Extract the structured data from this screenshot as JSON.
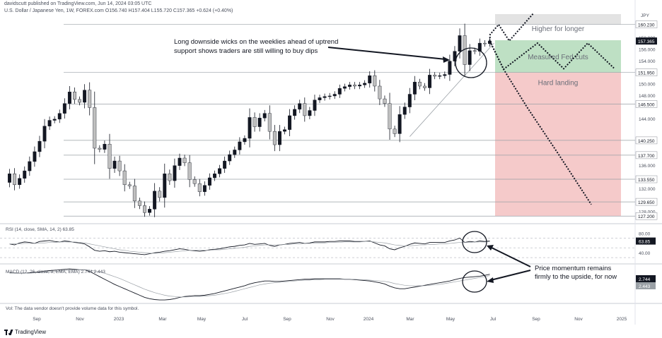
{
  "header": {
    "publisher_line": "davidscutt published on TradingView.com, Jun 14, 2024 03:05 UTC",
    "symbol_line": "U.S. Dollar / Japanese Yen, 1W, FOREX.com  O156.740  H157.404  L155.720  C157.365  +0.624 (+0.40%)",
    "currency": "JPY"
  },
  "footer": {
    "volume_note": "Vol: The data vendor doesn't provide volume data for this symbol.",
    "brand": "TradingView"
  },
  "colors": {
    "up_candle": "#131722",
    "down_candle": "#bfbfbf",
    "zone_higher": "#d9d9d9",
    "zone_measured": "#a8d5b0",
    "zone_hard": "#f2b8b8",
    "level_line": "#9aa0a6"
  },
  "chart_data": [
    {
      "type": "candlestick",
      "title": "U.S. Dollar / Japanese Yen, 1W",
      "x_tick_labels": [
        "Sep",
        "Nov",
        "2023",
        "Mar",
        "May",
        "Jul",
        "Sep",
        "Nov",
        "2024",
        "Mar",
        "May",
        "Jul",
        "Sep",
        "Nov",
        "2025"
      ],
      "y_tick_labels": [
        128,
        132,
        136,
        140,
        144,
        148,
        150,
        152,
        154,
        156,
        158
      ],
      "ylim": [
        126.5,
        162.0
      ],
      "close_path": [
        134.5,
        132.6,
        133.7,
        135.0,
        136.6,
        138.3,
        140.1,
        142.7,
        143.7,
        143.9,
        144.9,
        146.6,
        148.6,
        147.3,
        146.8,
        148.9,
        145.9,
        138.9,
        138.7,
        139.6,
        135.4,
        136.7,
        135.0,
        132.6,
        132.4,
        129.8,
        129.0,
        127.8,
        128.4,
        131.5,
        130.4,
        134.5,
        133.3,
        135.9,
        137.2,
        136.4,
        133.5,
        132.8,
        131.4,
        132.5,
        133.8,
        134.5,
        135.4,
        136.7,
        137.8,
        138.6,
        140.0,
        140.6,
        144.2,
        142.6,
        144.1,
        144.9,
        141.8,
        139.5,
        141.8,
        142.1,
        144.5,
        145.6,
        146.6,
        144.5,
        145.4,
        147.2,
        147.6,
        147.8,
        147.9,
        148.2,
        149.2,
        149.5,
        149.8,
        149.6,
        149.8,
        150.1,
        151.4,
        149.6,
        147.4,
        146.6,
        142.2,
        141.4,
        144.7,
        146.0,
        148.2,
        150.3,
        149.6,
        149.3,
        151.5,
        151.3,
        151.4,
        151.6,
        153.9,
        155.6,
        158.3,
        153.3,
        155.7,
        155.6,
        157.0,
        156.9,
        157.37
      ],
      "annotations": [
        "Long downside wicks on the weeklies ahead of uptrend support shows traders are still willing to buy dips",
        "Price momentum remains firmly to the upside, for now"
      ],
      "zones": [
        {
          "label": "Higher for longer",
          "from": 160.23,
          "to": 162.0
        },
        {
          "label": "Measured Fed cuts",
          "from": 151.95,
          "to": 157.5
        },
        {
          "label": "Hard landing",
          "from": 127.2,
          "to": 151.95
        }
      ],
      "price_levels": [
        {
          "label": "160.230",
          "value": 160.23
        },
        {
          "label": "157.365",
          "value": 157.365,
          "current": true
        },
        {
          "label": "151.950",
          "value": 151.95
        },
        {
          "label": "146.500",
          "value": 146.5
        },
        {
          "label": "140.250",
          "value": 140.25
        },
        {
          "label": "137.700",
          "value": 137.7
        },
        {
          "label": "133.550",
          "value": 133.55
        },
        {
          "label": "129.650",
          "value": 129.65
        },
        {
          "label": "127.200",
          "value": 127.2
        }
      ]
    },
    {
      "type": "line",
      "title": "RSI (14, close, SMA, 14, 2)",
      "value_label": "63.85",
      "y_tick_labels": [
        80.0,
        40.0
      ],
      "ylim": [
        20,
        95
      ],
      "series": [
        {
          "values": [
            58,
            56,
            60,
            62,
            61,
            59,
            63,
            64,
            65,
            63,
            62,
            64,
            63,
            61,
            60,
            58,
            52,
            45,
            43,
            44,
            42,
            43,
            41,
            40,
            39,
            38,
            37,
            36,
            38,
            40,
            41,
            43,
            44,
            46,
            48,
            47,
            45,
            44,
            43,
            44,
            46,
            47,
            48,
            50,
            52,
            53,
            55,
            56,
            59,
            57,
            58,
            59,
            55,
            53,
            56,
            57,
            59,
            60,
            61,
            59,
            60,
            62,
            62,
            62,
            63,
            63,
            64,
            64,
            64,
            63,
            63,
            63,
            64,
            60,
            56,
            54,
            48,
            46,
            50,
            53,
            57,
            60,
            59,
            58,
            61,
            61,
            61,
            61,
            64,
            66,
            70,
            61,
            63,
            62,
            64,
            63,
            63.85
          ]
        },
        {
          "values": [
            58,
            58,
            58,
            59,
            59,
            59,
            60,
            60,
            61,
            61,
            62,
            62,
            62,
            62,
            61,
            60,
            58,
            56,
            54,
            52,
            50,
            48,
            46,
            45,
            43,
            42,
            41,
            40,
            39,
            39,
            39,
            40,
            41,
            42,
            43,
            44,
            45,
            45,
            45,
            45,
            45,
            46,
            46,
            47,
            48,
            49,
            50,
            51,
            53,
            54,
            55,
            56,
            56,
            56,
            56,
            57,
            57,
            58,
            58,
            59,
            59,
            60,
            60,
            60,
            61,
            61,
            61,
            62,
            62,
            62,
            62,
            63,
            63,
            62,
            61,
            60,
            58,
            56,
            55,
            54,
            54,
            55,
            56,
            56,
            57,
            57,
            58,
            58,
            59,
            60,
            61,
            61,
            61,
            62,
            62,
            62,
            62.5
          ]
        }
      ]
    },
    {
      "type": "line",
      "title": "MACD (12, 26, close, 9, EMA, EMA)",
      "value_labels": [
        "2.744",
        "2.443"
      ],
      "ylim": [
        -4,
        4.5
      ],
      "series": [
        {
          "values": [
            3.1,
            3.0,
            3.0,
            3.0,
            3.1,
            3.2,
            3.3,
            3.5,
            3.6,
            3.7,
            3.8,
            3.9,
            4.0,
            3.9,
            3.8,
            3.8,
            3.4,
            2.8,
            2.2,
            1.6,
            1.0,
            0.4,
            -0.1,
            -0.6,
            -1.1,
            -1.6,
            -2.1,
            -2.6,
            -2.9,
            -3.1,
            -3.2,
            -3.2,
            -3.1,
            -2.9,
            -2.6,
            -2.4,
            -2.3,
            -2.2,
            -2.2,
            -2.1,
            -1.9,
            -1.7,
            -1.4,
            -1.1,
            -0.8,
            -0.5,
            -0.2,
            0.1,
            0.5,
            0.8,
            1.0,
            1.2,
            1.2,
            1.1,
            1.1,
            1.2,
            1.3,
            1.4,
            1.5,
            1.6,
            1.6,
            1.7,
            1.7,
            1.7,
            1.7,
            1.7,
            1.7,
            1.6,
            1.6,
            1.5,
            1.4,
            1.3,
            1.2,
            1.0,
            0.8,
            0.5,
            0.0,
            -0.4,
            -0.6,
            -0.6,
            -0.4,
            -0.2,
            0.0,
            0.2,
            0.4,
            0.6,
            0.8,
            1.0,
            1.2,
            1.5,
            1.8,
            2.0,
            2.1,
            2.2,
            2.3,
            2.5,
            2.744
          ]
        },
        {
          "values": [
            3.0,
            3.0,
            3.0,
            3.0,
            3.0,
            3.1,
            3.1,
            3.2,
            3.3,
            3.4,
            3.5,
            3.6,
            3.7,
            3.7,
            3.8,
            3.8,
            3.7,
            3.5,
            3.3,
            3.0,
            2.6,
            2.2,
            1.8,
            1.3,
            0.8,
            0.3,
            -0.2,
            -0.7,
            -1.1,
            -1.5,
            -1.8,
            -2.1,
            -2.3,
            -2.4,
            -2.5,
            -2.5,
            -2.5,
            -2.4,
            -2.4,
            -2.3,
            -2.2,
            -2.1,
            -1.9,
            -1.7,
            -1.5,
            -1.2,
            -0.9,
            -0.6,
            -0.3,
            0.0,
            0.3,
            0.5,
            0.7,
            0.8,
            0.9,
            1.0,
            1.1,
            1.2,
            1.3,
            1.4,
            1.4,
            1.5,
            1.5,
            1.6,
            1.6,
            1.6,
            1.6,
            1.6,
            1.6,
            1.6,
            1.5,
            1.5,
            1.4,
            1.3,
            1.2,
            1.1,
            0.9,
            0.6,
            0.4,
            0.2,
            0.1,
            0.1,
            0.1,
            0.1,
            0.2,
            0.3,
            0.4,
            0.6,
            0.8,
            1.0,
            1.2,
            1.4,
            1.6,
            1.8,
            2.0,
            2.2,
            2.443
          ]
        }
      ]
    }
  ]
}
